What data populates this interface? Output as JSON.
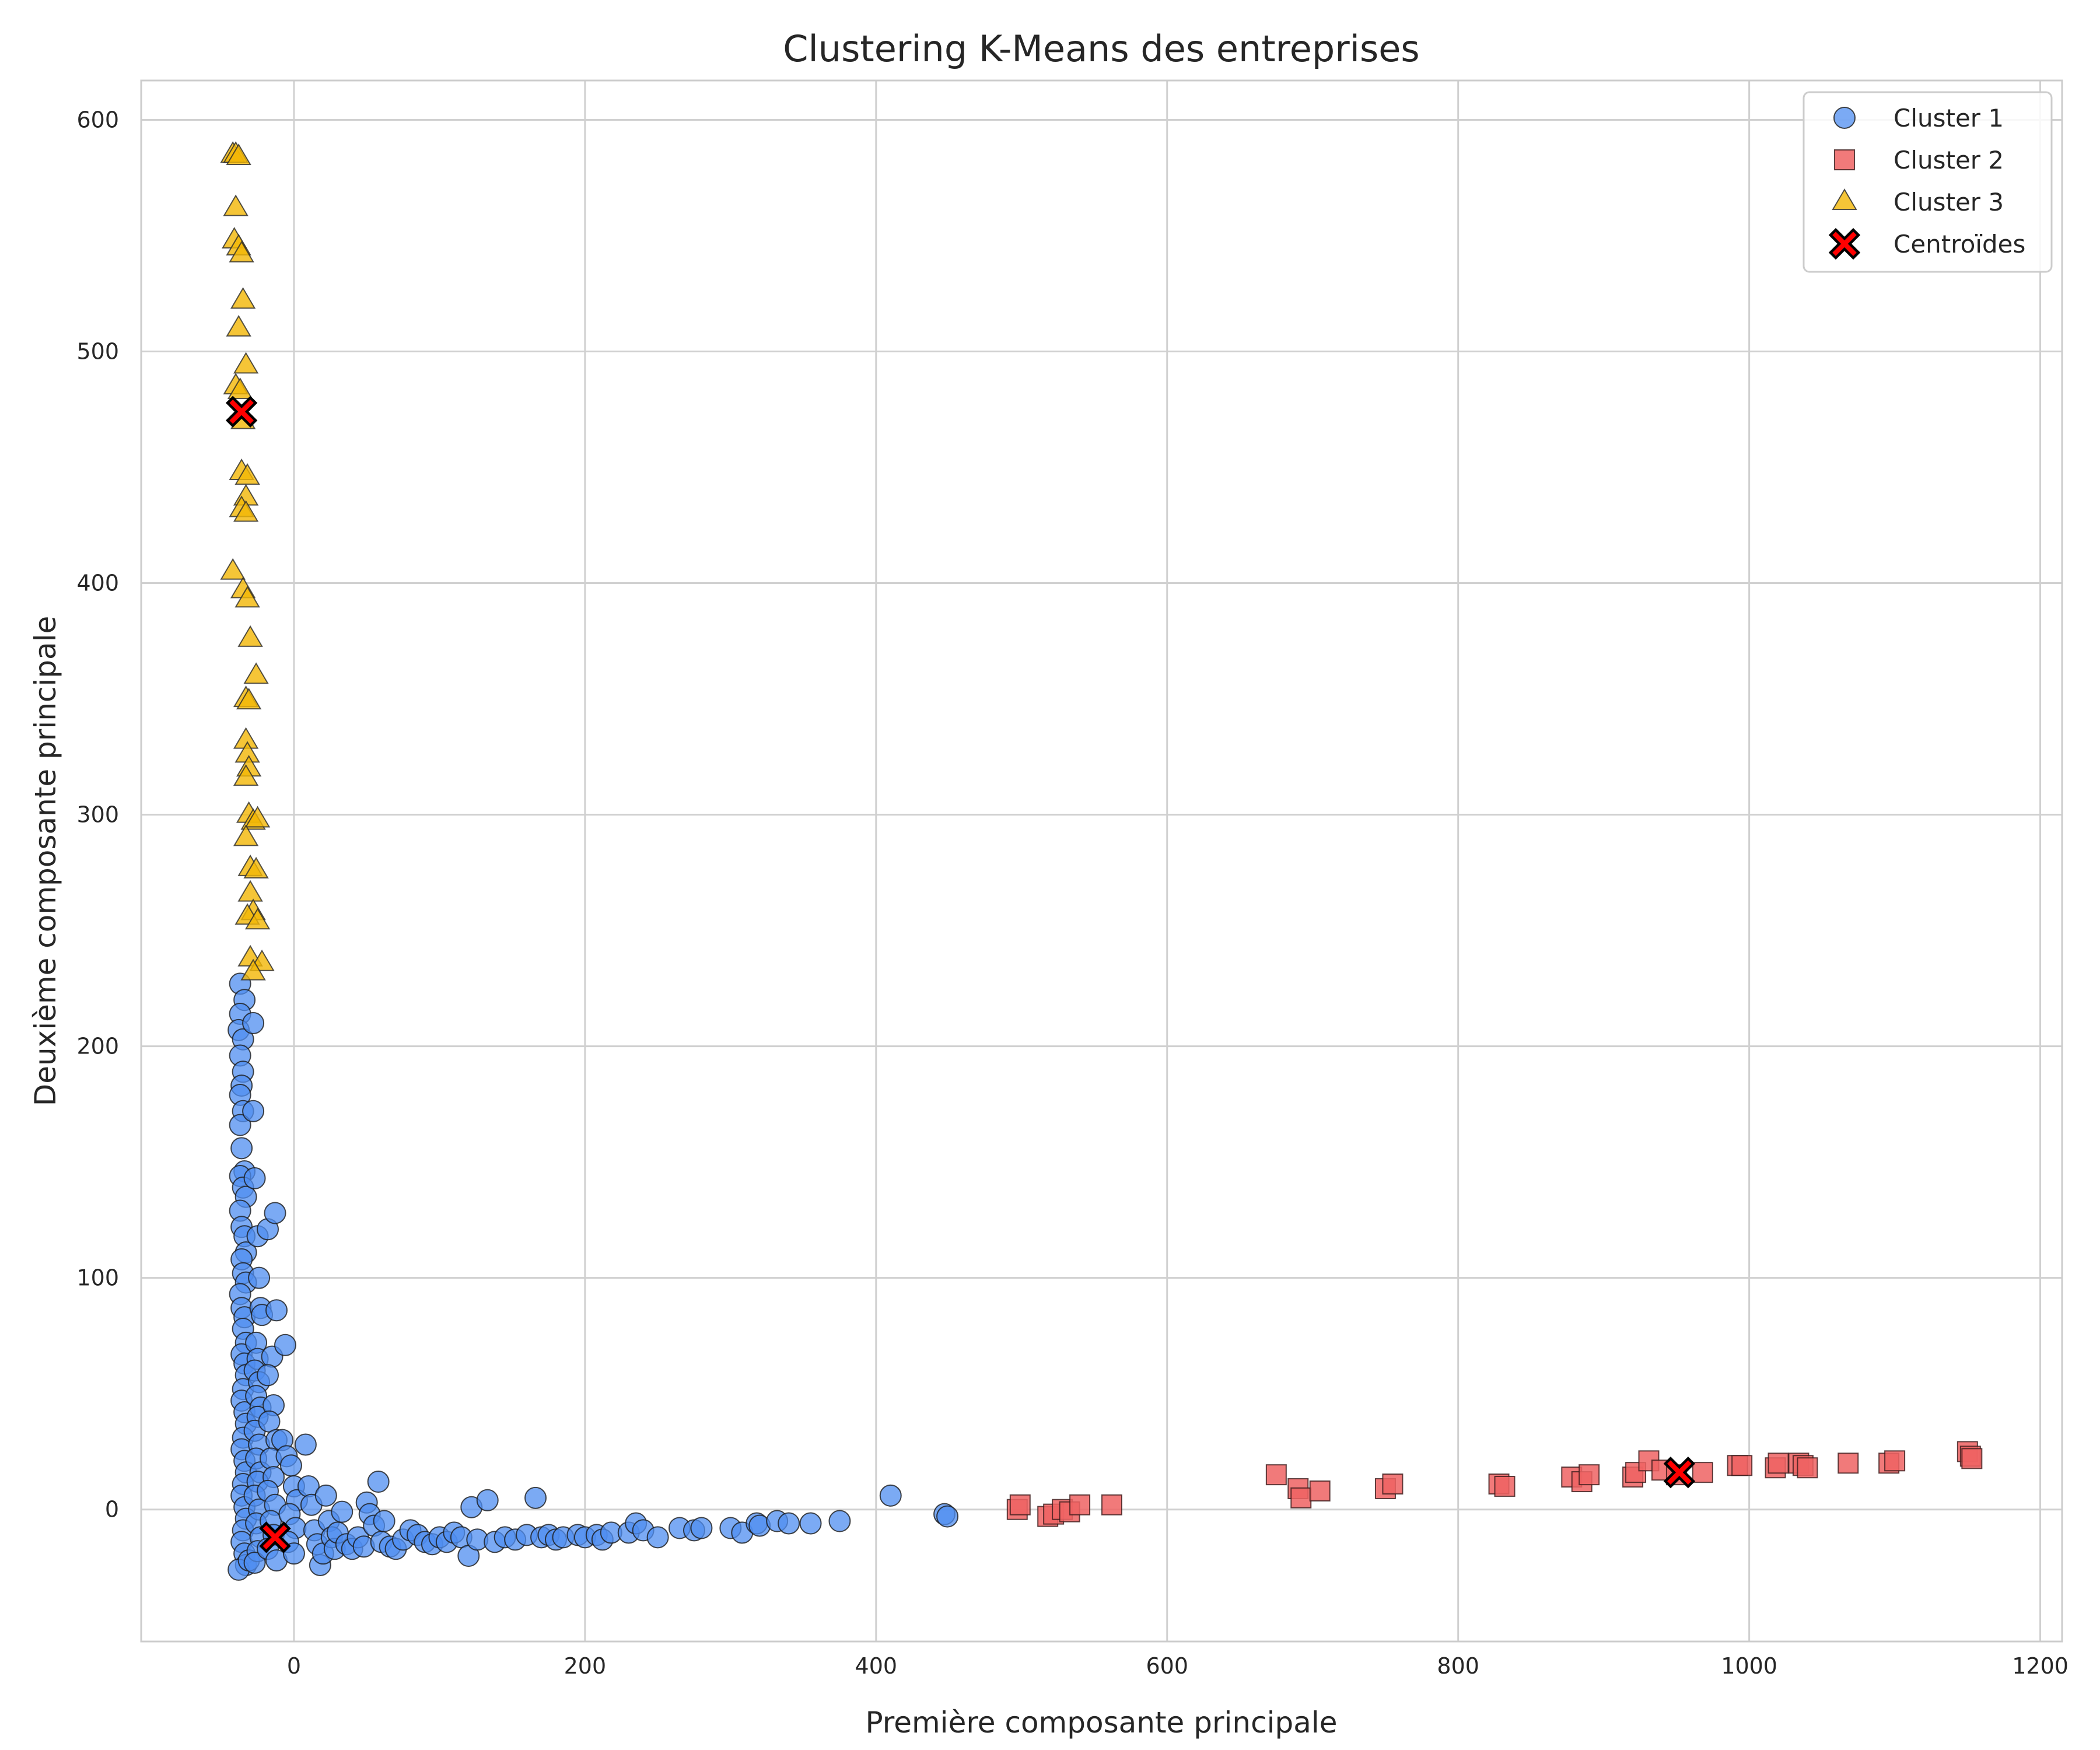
{
  "chart_data": {
    "type": "scatter",
    "title": "Clustering K-Means des entreprises",
    "xlabel": "Première composante principale",
    "ylabel": "Deuxième composante principale",
    "xlim": [
      -105,
      1215
    ],
    "ylim": [
      -57,
      617
    ],
    "xticks": [
      0,
      200,
      400,
      600,
      800,
      1000,
      1200
    ],
    "yticks": [
      0,
      100,
      200,
      300,
      400,
      500,
      600
    ],
    "grid": true,
    "legend_position": "top-right",
    "series": [
      {
        "name": "Cluster 1",
        "marker": "circle",
        "color": "#4f8ef0",
        "points": [
          [
            -37,
            227
          ],
          [
            -34,
            220
          ],
          [
            -37,
            214
          ],
          [
            -38,
            207
          ],
          [
            -35,
            203
          ],
          [
            -37,
            196
          ],
          [
            -35,
            189
          ],
          [
            -36,
            183
          ],
          [
            -37,
            179
          ],
          [
            -35,
            172
          ],
          [
            -37,
            166
          ],
          [
            -36,
            156
          ],
          [
            -34,
            146
          ],
          [
            -37,
            144
          ],
          [
            -35,
            139
          ],
          [
            -33,
            135
          ],
          [
            -37,
            129
          ],
          [
            -36,
            122
          ],
          [
            -34,
            118
          ],
          [
            -33,
            111
          ],
          [
            -36,
            108
          ],
          [
            -35,
            102
          ],
          [
            -33,
            98
          ],
          [
            -37,
            93
          ],
          [
            -36,
            87
          ],
          [
            -34,
            83
          ],
          [
            -35,
            78
          ],
          [
            -33,
            72
          ],
          [
            -36,
            67
          ],
          [
            -34,
            63
          ],
          [
            -33,
            58
          ],
          [
            -35,
            52
          ],
          [
            -36,
            47
          ],
          [
            -34,
            42
          ],
          [
            -33,
            37
          ],
          [
            -35,
            31
          ],
          [
            -36,
            26
          ],
          [
            -34,
            21
          ],
          [
            -33,
            16
          ],
          [
            -35,
            11
          ],
          [
            -36,
            6
          ],
          [
            -34,
            1
          ],
          [
            -33,
            -4
          ],
          [
            -35,
            -9
          ],
          [
            -36,
            -14
          ],
          [
            -34,
            -19
          ],
          [
            -33,
            -24
          ],
          [
            -38,
            -26
          ],
          [
            -31,
            -22
          ],
          [
            -28,
            210
          ],
          [
            -28,
            172
          ],
          [
            -27,
            143
          ],
          [
            -25,
            118
          ],
          [
            -24,
            100
          ],
          [
            -23,
            87
          ],
          [
            -22,
            84
          ],
          [
            -26,
            72
          ],
          [
            -25,
            65
          ],
          [
            -27,
            60
          ],
          [
            -24,
            55
          ],
          [
            -26,
            49
          ],
          [
            -23,
            44
          ],
          [
            -25,
            40
          ],
          [
            -27,
            34
          ],
          [
            -24,
            28
          ],
          [
            -26,
            22
          ],
          [
            -23,
            16
          ],
          [
            -25,
            12
          ],
          [
            -27,
            6
          ],
          [
            -24,
            0
          ],
          [
            -26,
            -6
          ],
          [
            -23,
            -12
          ],
          [
            -25,
            -18
          ],
          [
            -27,
            -23
          ],
          [
            -18,
            121
          ],
          [
            -13,
            128
          ],
          [
            -12,
            86
          ],
          [
            -15,
            66
          ],
          [
            -18,
            58
          ],
          [
            -14,
            45
          ],
          [
            -17,
            38
          ],
          [
            -12,
            30
          ],
          [
            -16,
            22
          ],
          [
            -14,
            14
          ],
          [
            -18,
            8
          ],
          [
            -13,
            2
          ],
          [
            -16,
            -5
          ],
          [
            -14,
            -11
          ],
          [
            -18,
            -17
          ],
          [
            -12,
            -22
          ],
          [
            -6,
            71
          ],
          [
            -8,
            30
          ],
          [
            -5,
            23
          ],
          [
            -2,
            19
          ],
          [
            0,
            10
          ],
          [
            2,
            4
          ],
          [
            -3,
            -2
          ],
          [
            1,
            -8
          ],
          [
            -4,
            -14
          ],
          [
            0,
            -19
          ],
          [
            8,
            28
          ],
          [
            10,
            10
          ],
          [
            12,
            2
          ],
          [
            14,
            -9
          ],
          [
            16,
            -15
          ],
          [
            18,
            -24
          ],
          [
            20,
            -19
          ],
          [
            22,
            6
          ],
          [
            24,
            -5
          ],
          [
            26,
            -12
          ],
          [
            28,
            -17
          ],
          [
            30,
            -10
          ],
          [
            33,
            -1
          ],
          [
            36,
            -15
          ],
          [
            40,
            -17
          ],
          [
            44,
            -12
          ],
          [
            48,
            -16
          ],
          [
            50,
            3
          ],
          [
            52,
            -2
          ],
          [
            55,
            -7
          ],
          [
            58,
            12
          ],
          [
            60,
            -14
          ],
          [
            62,
            -5
          ],
          [
            66,
            -16
          ],
          [
            70,
            -17
          ],
          [
            75,
            -13
          ],
          [
            80,
            -9
          ],
          [
            85,
            -11
          ],
          [
            90,
            -14
          ],
          [
            95,
            -15
          ],
          [
            100,
            -12
          ],
          [
            105,
            -14
          ],
          [
            110,
            -10
          ],
          [
            115,
            -12
          ],
          [
            120,
            -20
          ],
          [
            122,
            1
          ],
          [
            126,
            -13
          ],
          [
            133,
            4
          ],
          [
            138,
            -14
          ],
          [
            145,
            -12
          ],
          [
            152,
            -13
          ],
          [
            160,
            -11
          ],
          [
            166,
            5
          ],
          [
            170,
            -12
          ],
          [
            175,
            -11
          ],
          [
            180,
            -13
          ],
          [
            185,
            -12
          ],
          [
            195,
            -11
          ],
          [
            200,
            -12
          ],
          [
            208,
            -11
          ],
          [
            212,
            -13
          ],
          [
            218,
            -10
          ],
          [
            230,
            -10
          ],
          [
            235,
            -6
          ],
          [
            240,
            -9
          ],
          [
            250,
            -12
          ],
          [
            265,
            -8
          ],
          [
            275,
            -9
          ],
          [
            280,
            -8
          ],
          [
            300,
            -8
          ],
          [
            308,
            -10
          ],
          [
            318,
            -6
          ],
          [
            320,
            -7
          ],
          [
            332,
            -5
          ],
          [
            340,
            -6
          ],
          [
            355,
            -6
          ],
          [
            375,
            -5
          ],
          [
            410,
            6
          ],
          [
            447,
            -2
          ],
          [
            449,
            -3
          ]
        ]
      },
      {
        "name": "Cluster 2",
        "marker": "square",
        "color": "#ee6363",
        "points": [
          [
            497,
            0
          ],
          [
            499,
            2
          ],
          [
            518,
            -3
          ],
          [
            522,
            -2
          ],
          [
            528,
            0
          ],
          [
            533,
            -1
          ],
          [
            540,
            2
          ],
          [
            562,
            2
          ],
          [
            675,
            15
          ],
          [
            690,
            9
          ],
          [
            692,
            5
          ],
          [
            705,
            8
          ],
          [
            750,
            9
          ],
          [
            755,
            11
          ],
          [
            828,
            11
          ],
          [
            832,
            10
          ],
          [
            878,
            14
          ],
          [
            885,
            12
          ],
          [
            890,
            15
          ],
          [
            920,
            14
          ],
          [
            922,
            16
          ],
          [
            931,
            21
          ],
          [
            940,
            17
          ],
          [
            950,
            15
          ],
          [
            968,
            16
          ],
          [
            992,
            19
          ],
          [
            995,
            19
          ],
          [
            1018,
            18
          ],
          [
            1020,
            20
          ],
          [
            1034,
            20
          ],
          [
            1037,
            19
          ],
          [
            1040,
            18
          ],
          [
            1068,
            20
          ],
          [
            1096,
            20
          ],
          [
            1100,
            21
          ],
          [
            1150,
            25
          ],
          [
            1152,
            23
          ],
          [
            1153,
            22
          ]
        ]
      },
      {
        "name": "Cluster 3",
        "marker": "triangle",
        "color": "#f2b705",
        "points": [
          [
            -42,
            585
          ],
          [
            -40,
            585
          ],
          [
            -38,
            584
          ],
          [
            -40,
            562
          ],
          [
            -41,
            548
          ],
          [
            -38,
            545
          ],
          [
            -36,
            542
          ],
          [
            -35,
            522
          ],
          [
            -38,
            510
          ],
          [
            -33,
            494
          ],
          [
            -40,
            485
          ],
          [
            -37,
            483
          ],
          [
            -35,
            470
          ],
          [
            -36,
            448
          ],
          [
            -32,
            446
          ],
          [
            -33,
            437
          ],
          [
            -36,
            432
          ],
          [
            -33,
            430
          ],
          [
            -42,
            405
          ],
          [
            -35,
            397
          ],
          [
            -32,
            393
          ],
          [
            -30,
            376
          ],
          [
            -26,
            360
          ],
          [
            -33,
            350
          ],
          [
            -31,
            349
          ],
          [
            -33,
            332
          ],
          [
            -32,
            326
          ],
          [
            -31,
            320
          ],
          [
            -33,
            316
          ],
          [
            -31,
            300
          ],
          [
            -28,
            297
          ],
          [
            -25,
            298
          ],
          [
            -33,
            290
          ],
          [
            -30,
            277
          ],
          [
            -26,
            276
          ],
          [
            -30,
            266
          ],
          [
            -28,
            258
          ],
          [
            -32,
            256
          ],
          [
            -25,
            254
          ],
          [
            -30,
            238
          ],
          [
            -22,
            236
          ],
          [
            -28,
            232
          ]
        ]
      },
      {
        "name": "Centroïdes",
        "marker": "x",
        "color": "#ff0000",
        "points": [
          [
            -36,
            474
          ],
          [
            -13,
            -12
          ],
          [
            952,
            16
          ]
        ]
      }
    ]
  }
}
